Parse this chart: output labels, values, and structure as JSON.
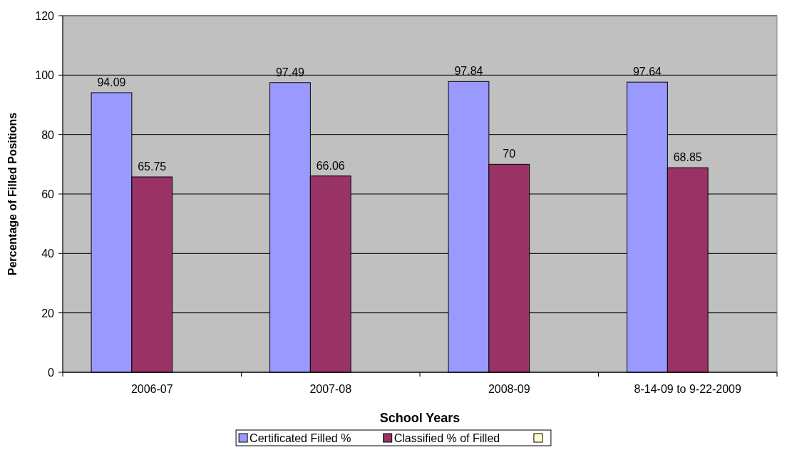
{
  "chart_data": {
    "type": "bar",
    "xlabel": "School Years",
    "ylabel": "Percentage of Filled Positions",
    "categories": [
      "2006-07",
      "2007-08",
      "2008-09",
      "8-14-09 to 9-22-2009"
    ],
    "series": [
      {
        "name": "Certificated Filled %",
        "color": "#9999ff",
        "values": [
          94.09,
          97.49,
          97.84,
          97.64
        ]
      },
      {
        "name": "Classified % of Filled",
        "color": "#993366",
        "values": [
          65.75,
          66.06,
          70,
          68.85
        ]
      },
      {
        "color": "#ffffcc",
        "values": [
          null,
          null,
          null,
          null
        ]
      }
    ],
    "ylim": [
      0,
      120
    ],
    "yticks": [
      0,
      20,
      40,
      60,
      80,
      100,
      120
    ],
    "grid": "y",
    "legend": "bottom",
    "data_labels": true
  }
}
